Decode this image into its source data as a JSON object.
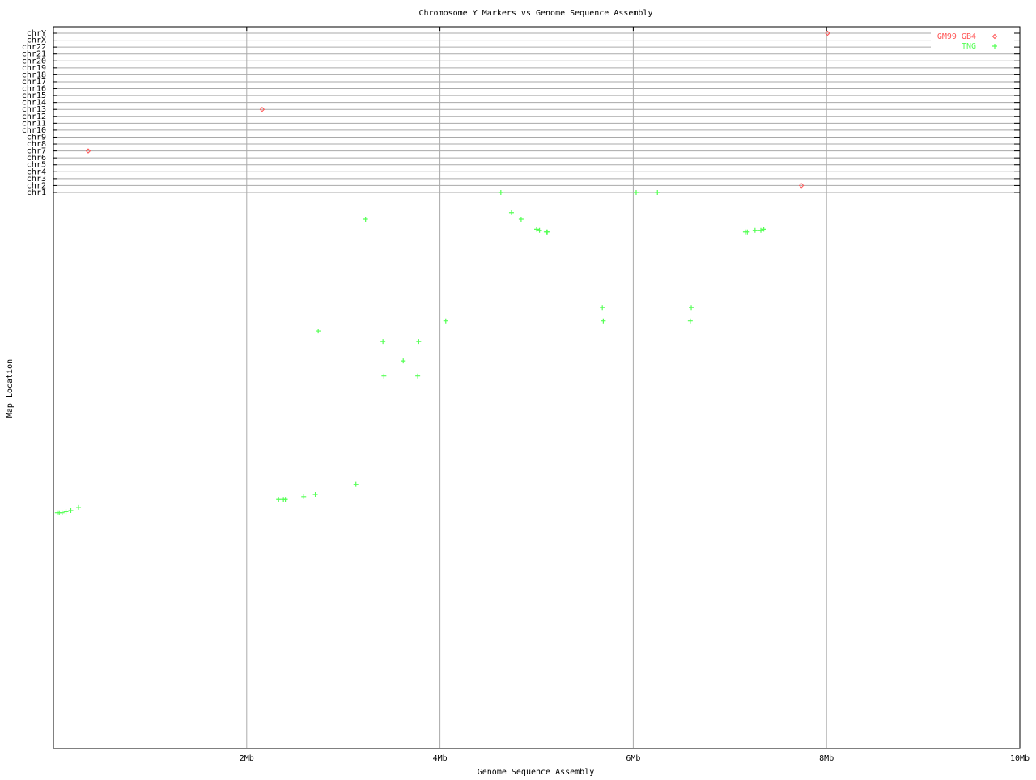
{
  "chart_data": {
    "type": "scatter",
    "title": "Chromosome Y Markers vs Genome Sequence Assembly",
    "xlabel": "Genome Sequence Assembly",
    "ylabel": "Map Location",
    "xlim": [
      0,
      10
    ],
    "x_ticks": [
      {
        "value": 2,
        "label": "2Mb"
      },
      {
        "value": 4,
        "label": "4Mb"
      },
      {
        "value": 6,
        "label": "6Mb"
      },
      {
        "value": 8,
        "label": "8Mb"
      },
      {
        "value": 10,
        "label": "10Mb"
      }
    ],
    "chromosome_rows": [
      "chrY",
      "chrX",
      "chr22",
      "chr21",
      "chr20",
      "chr19",
      "chr18",
      "chr17",
      "chr16",
      "chr15",
      "chr14",
      "chr13",
      "chr12",
      "chr11",
      "chr10",
      "chr9",
      "chr8",
      "chr7",
      "chr6",
      "chr5",
      "chr4",
      "chr3",
      "chr2",
      "chr1"
    ],
    "map_location_range": [
      0,
      100
    ],
    "grid": true,
    "legend_position": "top-right",
    "series": [
      {
        "name": "GM99 GB4",
        "color": "#ff5555",
        "marker": "diamond",
        "points": [
          {
            "x": 0.36,
            "chrom": "chr7"
          },
          {
            "x": 2.16,
            "chrom": "chr13"
          },
          {
            "x": 7.74,
            "chrom": "chr2"
          },
          {
            "x": 8.01,
            "chrom": "chrY"
          }
        ]
      },
      {
        "name": "TNG",
        "color": "#55ff55",
        "marker": "plus",
        "points": [
          {
            "x": 4.63,
            "chrom": "chr1"
          },
          {
            "x": 6.03,
            "chrom": "chr1"
          },
          {
            "x": 6.25,
            "chrom": "chr1"
          },
          {
            "x": 3.23,
            "y": 4.8
          },
          {
            "x": 4.74,
            "y": 3.6
          },
          {
            "x": 4.84,
            "y": 4.8
          },
          {
            "x": 5.0,
            "y": 6.6
          },
          {
            "x": 5.03,
            "y": 6.8
          },
          {
            "x": 5.1,
            "y": 7.1
          },
          {
            "x": 5.11,
            "y": 7.1
          },
          {
            "x": 7.16,
            "y": 7.1
          },
          {
            "x": 7.18,
            "y": 7.1
          },
          {
            "x": 7.26,
            "y": 6.8
          },
          {
            "x": 7.32,
            "y": 6.8
          },
          {
            "x": 7.35,
            "y": 6.6
          },
          {
            "x": 5.68,
            "y": 20.7
          },
          {
            "x": 6.6,
            "y": 20.7
          },
          {
            "x": 5.69,
            "y": 23.1
          },
          {
            "x": 6.59,
            "y": 23.1
          },
          {
            "x": 4.06,
            "y": 23.1
          },
          {
            "x": 2.74,
            "y": 24.9
          },
          {
            "x": 3.41,
            "y": 26.8
          },
          {
            "x": 3.78,
            "y": 26.8
          },
          {
            "x": 3.62,
            "y": 30.3
          },
          {
            "x": 3.42,
            "y": 33.0
          },
          {
            "x": 3.77,
            "y": 33.0
          },
          {
            "x": 3.13,
            "y": 52.5
          },
          {
            "x": 2.71,
            "y": 54.3
          },
          {
            "x": 2.59,
            "y": 54.7
          },
          {
            "x": 2.33,
            "y": 55.2
          },
          {
            "x": 2.38,
            "y": 55.2
          },
          {
            "x": 2.4,
            "y": 55.2
          },
          {
            "x": 0.26,
            "y": 56.6
          },
          {
            "x": 0.18,
            "y": 57.2
          },
          {
            "x": 0.13,
            "y": 57.4
          },
          {
            "x": 0.04,
            "y": 57.6
          },
          {
            "x": 0.06,
            "y": 57.6
          },
          {
            "x": 0.09,
            "y": 57.6
          }
        ]
      }
    ]
  }
}
